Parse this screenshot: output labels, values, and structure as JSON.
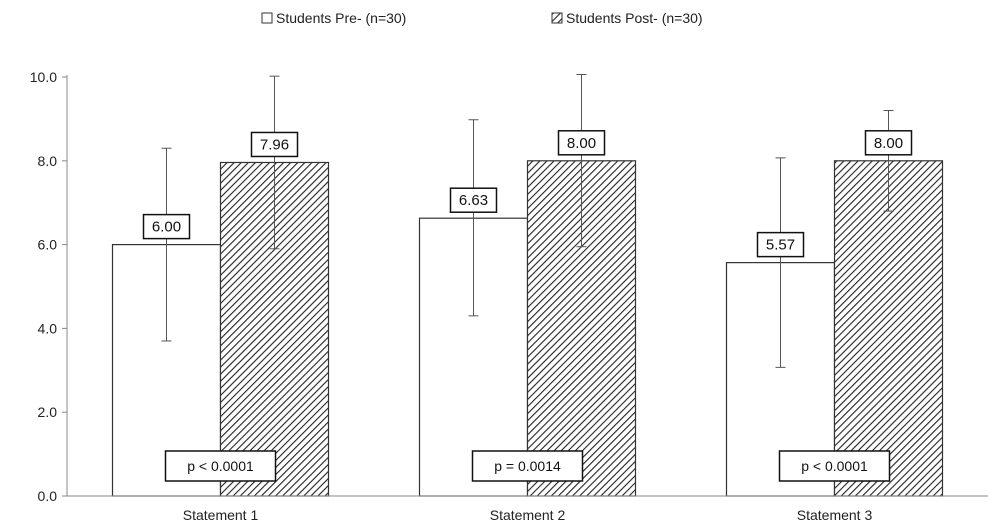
{
  "chart_data": {
    "type": "bar",
    "title": "",
    "xlabel": "",
    "ylabel": "",
    "ylim": [
      0,
      10
    ],
    "yticks": [
      0,
      2,
      4,
      6,
      8,
      10
    ],
    "ytick_labels": [
      "0.0",
      "2.0",
      "4.0",
      "6.0",
      "8.0",
      "10.0"
    ],
    "grid": false,
    "legend_position": "top",
    "categories": [
      "Statement 1",
      "Statement 2",
      "Statement 3"
    ],
    "series": [
      {
        "name": "Students Pre- (n=30)",
        "values": [
          6.0,
          6.63,
          5.57
        ],
        "value_labels": [
          "6.00",
          "6.63",
          "5.57"
        ],
        "error_low": [
          3.7,
          4.3,
          3.07
        ],
        "error_high": [
          8.3,
          8.98,
          8.07
        ],
        "fill": "#ffffff",
        "pattern": "none"
      },
      {
        "name": "Students Post- (n=30)",
        "values": [
          7.96,
          8.0,
          8.0
        ],
        "value_labels": [
          "7.96",
          "8.00",
          "8.00"
        ],
        "error_low": [
          5.9,
          5.95,
          6.8
        ],
        "error_high": [
          10.02,
          10.06,
          9.2
        ],
        "fill": "#ffffff",
        "pattern": "diagonal-hatch"
      }
    ],
    "annotations": [
      "p < 0.0001",
      "p = 0.0014",
      "p < 0.0001"
    ],
    "colors": {
      "stroke": "#333333",
      "hatch": "#222222",
      "axis": "#888888"
    }
  }
}
